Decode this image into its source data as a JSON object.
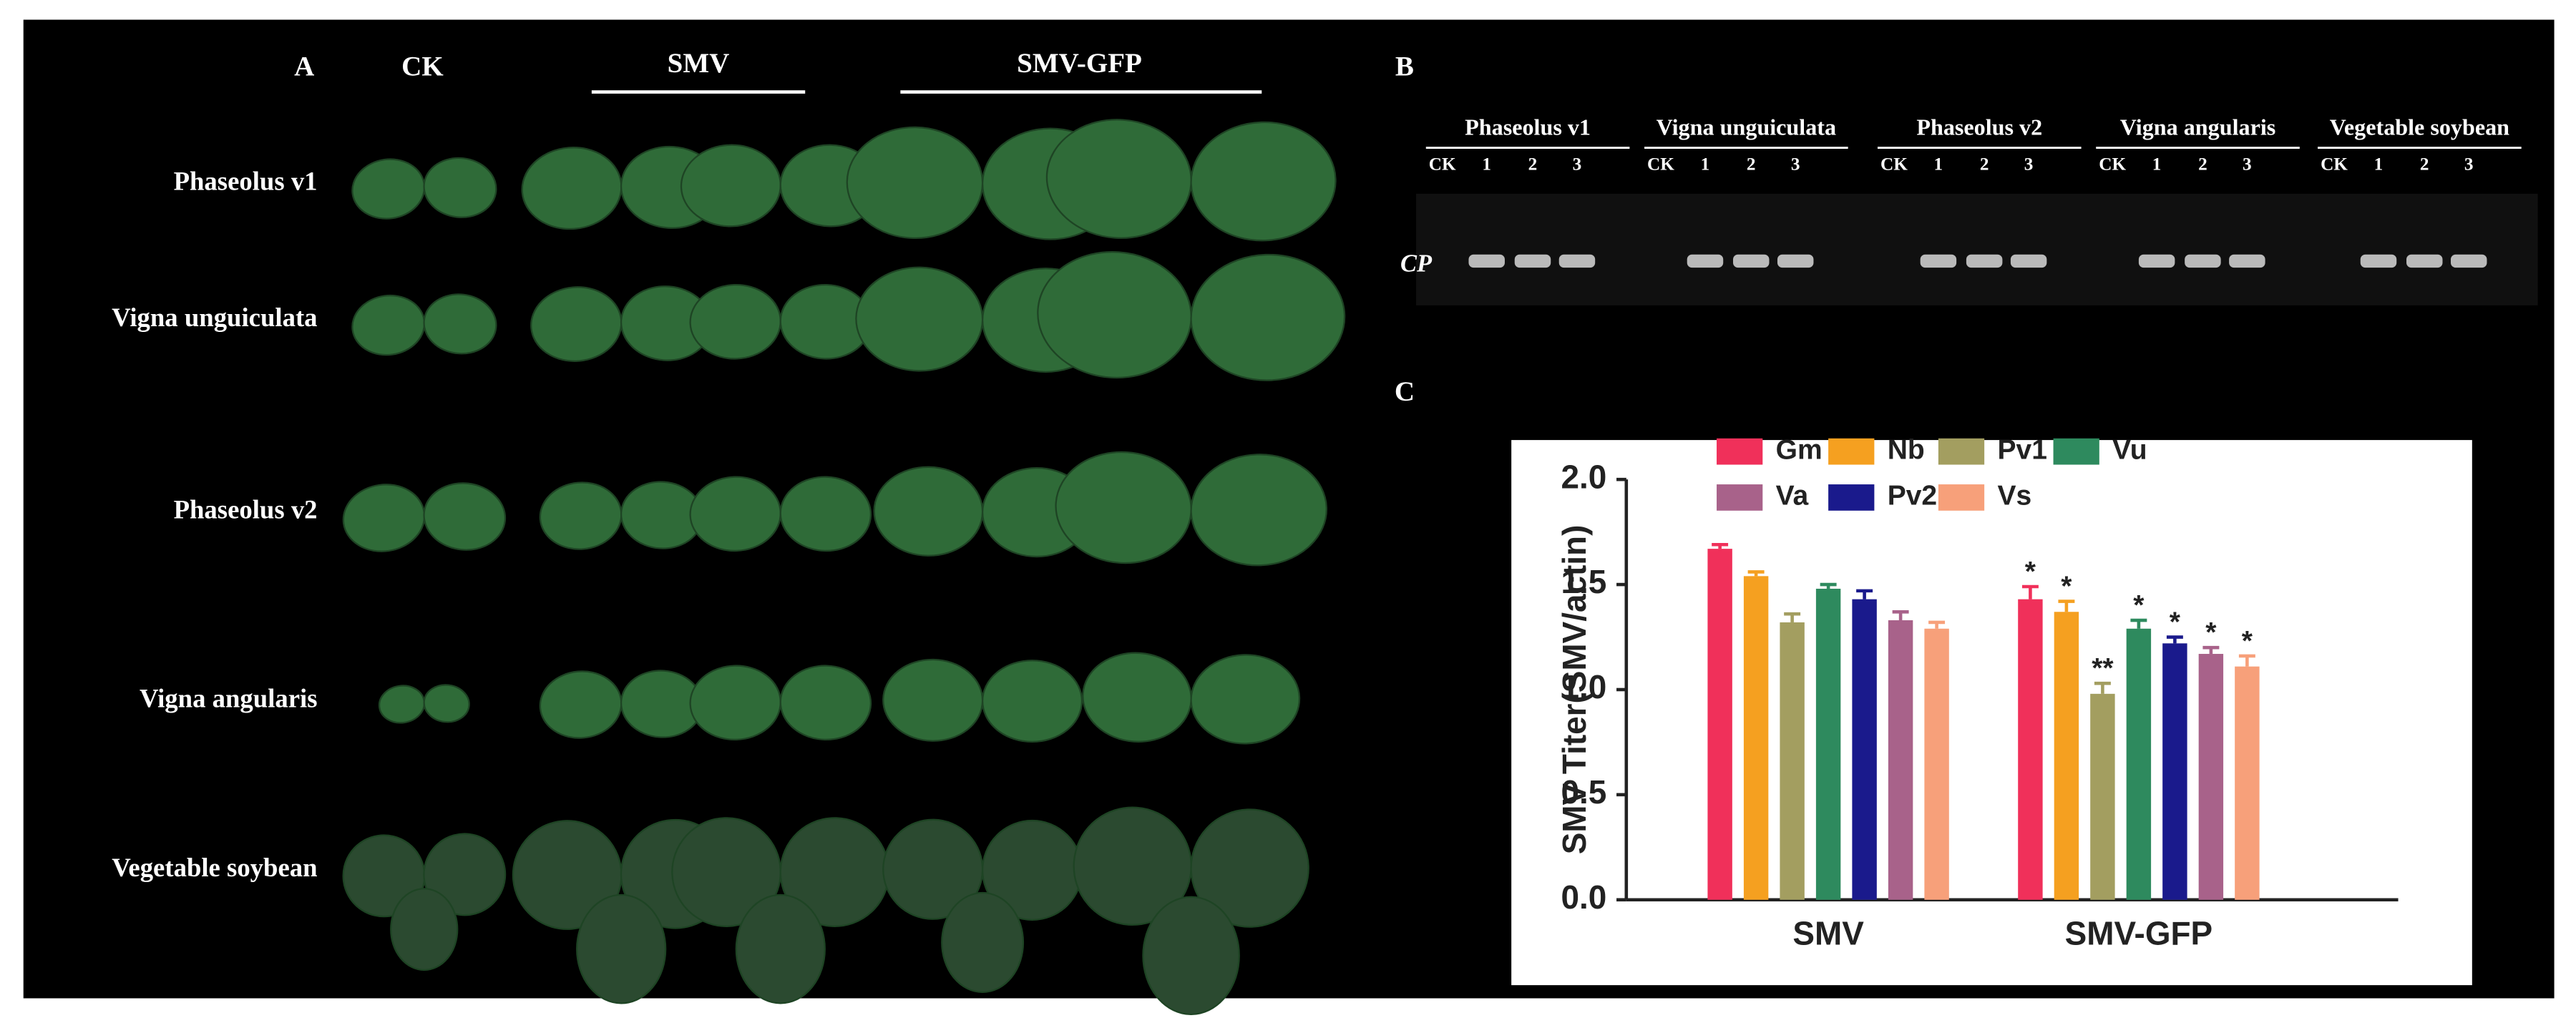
{
  "panel_a": {
    "label": "A",
    "columns": [
      "CK",
      "SMV",
      "SMV-GFP"
    ],
    "rows": [
      "Phaseolus v1",
      "Vigna unguiculata",
      "Phaseolus v2",
      "Vigna angularis",
      "Vegetable soybean"
    ]
  },
  "panel_b": {
    "label": "B",
    "groups": [
      "Phaseolus v1",
      "Vigna unguiculata",
      "Phaseolus v2",
      "Vigna angularis",
      "Vegetable soybean"
    ],
    "lanes": [
      "CK",
      "1",
      "2",
      "3"
    ],
    "band_label": "CP"
  },
  "panel_c": {
    "label": "C"
  },
  "chart_data": {
    "type": "bar",
    "ylabel": "SMV Titer(SMV/actin)",
    "categories": [
      "SMV",
      "SMV-GFP"
    ],
    "ylim": [
      0,
      2
    ],
    "yticks": [
      {
        "value": 0,
        "label": "0.0"
      },
      0.5,
      {
        "value": 1,
        "label": "1.0"
      },
      1.5,
      {
        "value": 2,
        "label": "2.0"
      }
    ],
    "series": [
      {
        "name": "Gm",
        "color": "#f0305a",
        "values": [
          1.67,
          1.43
        ],
        "errors": [
          0.02,
          0.06
        ],
        "annotations": [
          null,
          "*"
        ]
      },
      {
        "name": "Nb",
        "color": "#f5a020",
        "values": [
          1.54,
          1.37
        ],
        "errors": [
          0.02,
          0.05
        ],
        "annotations": [
          null,
          "*"
        ]
      },
      {
        "name": "Pv1",
        "color": "#a39e60",
        "values": [
          1.32,
          0.98
        ],
        "errors": [
          0.04,
          0.05
        ],
        "annotations": [
          null,
          "**"
        ]
      },
      {
        "name": "Vu",
        "color": "#2e8a5e",
        "values": [
          1.48,
          1.29
        ],
        "errors": [
          0.02,
          0.04
        ],
        "annotations": [
          null,
          "*"
        ]
      },
      {
        "name": "Pv2",
        "color": "#1a1a8c",
        "values": [
          1.43,
          1.22
        ],
        "errors": [
          0.04,
          0.03
        ],
        "annotations": [
          null,
          "*"
        ]
      },
      {
        "name": "Va",
        "color": "#a8628a",
        "values": [
          1.33,
          1.17
        ],
        "errors": [
          0.04,
          0.03
        ],
        "annotations": [
          null,
          "*"
        ]
      },
      {
        "name": "Vs",
        "color": "#f7a07a",
        "values": [
          1.29,
          1.11
        ],
        "errors": [
          0.03,
          0.05
        ],
        "annotations": [
          null,
          "*"
        ]
      }
    ]
  }
}
